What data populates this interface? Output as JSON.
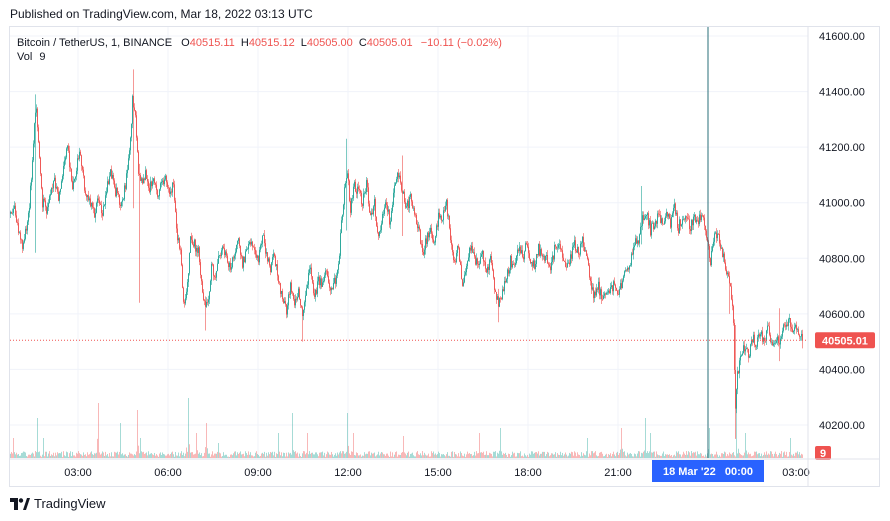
{
  "header": {
    "published": "Published on TradingView.com, Mar 18, 2022 03:13 UTC"
  },
  "legend": {
    "symbol": "Bitcoin / TetherUS, 1, BINANCE",
    "open_label": "O",
    "open": "40515.11",
    "high_label": "H",
    "high": "40515.12",
    "low_label": "L",
    "low": "40505.00",
    "close_label": "C",
    "close": "40505.01",
    "change": "−10.11 (−0.02%)",
    "vol_label": "Vol",
    "vol": "9"
  },
  "brand": {
    "name": "TradingView",
    "logo_icon": "tradingview-logo-icon"
  },
  "colors": {
    "up": "#26a69a",
    "down": "#ef5350",
    "crosshair": "#2a6f7a",
    "date_badge": "#2962ff"
  },
  "chart_data": {
    "type": "candlestick",
    "symbol": "BTC/USDT",
    "interval": "1",
    "exchange": "BINANCE",
    "ylim": [
      40120,
      41640
    ],
    "yticks": [
      40200,
      40400,
      40600,
      40800,
      41000,
      41200,
      41400,
      41600
    ],
    "ytick_labels": [
      "40200.00",
      "40400.00",
      "40600.00",
      "40800.00",
      "41000.00",
      "41200.00",
      "41400.00",
      "41600.00"
    ],
    "xtick_labels": [
      "03:00",
      "06:00",
      "09:00",
      "12:00",
      "15:00",
      "18:00",
      "21:00",
      "03:00"
    ],
    "last_price": 40505.01,
    "last_price_label": "40505.01",
    "last_volume_label": "9",
    "crosshair_date_label": "18 Mar '22   00:00",
    "grid": true,
    "path": [
      [
        0,
        40960
      ],
      [
        4,
        40990
      ],
      [
        8,
        40900
      ],
      [
        12,
        40850
      ],
      [
        18,
        40950
      ],
      [
        22,
        41150
      ],
      [
        24,
        41280
      ],
      [
        26,
        41350
      ],
      [
        29,
        41150
      ],
      [
        32,
        41000
      ],
      [
        36,
        40980
      ],
      [
        40,
        41050
      ],
      [
        44,
        41080
      ],
      [
        48,
        41000
      ],
      [
        53,
        41120
      ],
      [
        57,
        41200
      ],
      [
        62,
        41060
      ],
      [
        66,
        41130
      ],
      [
        70,
        41180
      ],
      [
        74,
        41060
      ],
      [
        79,
        41000
      ],
      [
        84,
        40960
      ],
      [
        88,
        41010
      ],
      [
        92,
        40960
      ],
      [
        96,
        41050
      ],
      [
        100,
        41120
      ],
      [
        104,
        41050
      ],
      [
        107,
        41030
      ],
      [
        111,
        40990
      ],
      [
        115,
        41060
      ],
      [
        118,
        41150
      ],
      [
        121,
        41270
      ],
      [
        122,
        41380
      ],
      [
        125,
        41300
      ],
      [
        128,
        41110
      ],
      [
        131,
        41070
      ],
      [
        135,
        41100
      ],
      [
        139,
        41050
      ],
      [
        143,
        41100
      ],
      [
        147,
        41030
      ],
      [
        151,
        41080
      ],
      [
        155,
        41090
      ],
      [
        159,
        41040
      ],
      [
        163,
        41060
      ],
      [
        166,
        40900
      ],
      [
        170,
        40830
      ],
      [
        173,
        40640
      ],
      [
        177,
        40700
      ],
      [
        180,
        40860
      ],
      [
        184,
        40850
      ],
      [
        188,
        40820
      ],
      [
        191,
        40700
      ],
      [
        195,
        40610
      ],
      [
        198,
        40650
      ],
      [
        201,
        40780
      ],
      [
        205,
        40720
      ],
      [
        208,
        40800
      ],
      [
        212,
        40850
      ],
      [
        216,
        40790
      ],
      [
        220,
        40760
      ],
      [
        224,
        40820
      ],
      [
        228,
        40870
      ],
      [
        232,
        40780
      ],
      [
        236,
        40830
      ],
      [
        240,
        40860
      ],
      [
        244,
        40820
      ],
      [
        248,
        40790
      ],
      [
        252,
        40880
      ],
      [
        256,
        40820
      ],
      [
        260,
        40760
      ],
      [
        264,
        40810
      ],
      [
        268,
        40720
      ],
      [
        272,
        40660
      ],
      [
        276,
        40610
      ],
      [
        280,
        40700
      ],
      [
        284,
        40630
      ],
      [
        288,
        40680
      ],
      [
        292,
        40600
      ],
      [
        296,
        40700
      ],
      [
        300,
        40780
      ],
      [
        304,
        40650
      ],
      [
        308,
        40730
      ],
      [
        312,
        40700
      ],
      [
        316,
        40760
      ],
      [
        320,
        40680
      ],
      [
        324,
        40710
      ],
      [
        328,
        40760
      ],
      [
        331,
        40940
      ],
      [
        334,
        41040
      ],
      [
        337,
        41100
      ],
      [
        340,
        40980
      ],
      [
        344,
        41060
      ],
      [
        348,
        41040
      ],
      [
        352,
        41000
      ],
      [
        356,
        41070
      ],
      [
        360,
        40950
      ],
      [
        364,
        41000
      ],
      [
        368,
        40870
      ],
      [
        372,
        40940
      ],
      [
        376,
        41000
      ],
      [
        380,
        40920
      ],
      [
        384,
        41080
      ],
      [
        388,
        41100
      ],
      [
        392,
        41040
      ],
      [
        396,
        40980
      ],
      [
        400,
        41020
      ],
      [
        404,
        40950
      ],
      [
        408,
        40920
      ],
      [
        412,
        40820
      ],
      [
        416,
        40870
      ],
      [
        420,
        40920
      ],
      [
        424,
        40840
      ],
      [
        428,
        40960
      ],
      [
        432,
        40950
      ],
      [
        436,
        41000
      ],
      [
        440,
        40880
      ],
      [
        444,
        40790
      ],
      [
        448,
        40840
      ],
      [
        452,
        40700
      ],
      [
        456,
        40780
      ],
      [
        460,
        40840
      ],
      [
        464,
        40800
      ],
      [
        468,
        40760
      ],
      [
        472,
        40820
      ],
      [
        476,
        40740
      ],
      [
        480,
        40790
      ],
      [
        484,
        40700
      ],
      [
        488,
        40640
      ],
      [
        492,
        40680
      ],
      [
        496,
        40730
      ],
      [
        500,
        40790
      ],
      [
        504,
        40760
      ],
      [
        508,
        40840
      ],
      [
        512,
        40800
      ],
      [
        516,
        40860
      ],
      [
        520,
        40800
      ],
      [
        524,
        40780
      ],
      [
        528,
        40840
      ],
      [
        532,
        40790
      ],
      [
        536,
        40810
      ],
      [
        540,
        40770
      ],
      [
        544,
        40830
      ],
      [
        548,
        40860
      ],
      [
        552,
        40800
      ],
      [
        556,
        40760
      ],
      [
        560,
        40800
      ],
      [
        564,
        40850
      ],
      [
        568,
        40820
      ],
      [
        572,
        40860
      ],
      [
        576,
        40800
      ],
      [
        580,
        40720
      ],
      [
        584,
        40660
      ],
      [
        588,
        40700
      ],
      [
        592,
        40640
      ],
      [
        596,
        40690
      ],
      [
        600,
        40680
      ],
      [
        604,
        40720
      ],
      [
        608,
        40680
      ],
      [
        612,
        40720
      ],
      [
        616,
        40750
      ],
      [
        620,
        40780
      ],
      [
        624,
        40850
      ],
      [
        628,
        40870
      ],
      [
        632,
        40950
      ],
      [
        636,
        40970
      ],
      [
        640,
        40900
      ],
      [
        644,
        40930
      ],
      [
        648,
        40950
      ],
      [
        652,
        40920
      ],
      [
        656,
        40960
      ],
      [
        660,
        40920
      ],
      [
        664,
        40980
      ],
      [
        668,
        40910
      ],
      [
        672,
        40950
      ],
      [
        676,
        40960
      ],
      [
        680,
        40910
      ],
      [
        684,
        40950
      ],
      [
        688,
        40940
      ],
      [
        692,
        40960
      ],
      [
        694,
        40920
      ],
      [
        697,
        40880
      ],
      [
        700,
        40780
      ],
      [
        704,
        40900
      ],
      [
        708,
        40880
      ],
      [
        712,
        40820
      ],
      [
        716,
        40750
      ],
      [
        720,
        40700
      ],
      [
        723,
        40580
      ],
      [
        725,
        40240
      ],
      [
        727,
        40390
      ],
      [
        730,
        40430
      ],
      [
        734,
        40480
      ],
      [
        738,
        40450
      ],
      [
        742,
        40510
      ],
      [
        746,
        40490
      ],
      [
        750,
        40530
      ],
      [
        754,
        40500
      ],
      [
        758,
        40560
      ],
      [
        762,
        40470
      ],
      [
        766,
        40520
      ],
      [
        770,
        40500
      ],
      [
        774,
        40560
      ],
      [
        778,
        40580
      ],
      [
        782,
        40530
      ],
      [
        786,
        40560
      ],
      [
        790,
        40520
      ],
      [
        792,
        40505
      ]
    ],
    "spikes": [
      [
        25,
        41390,
        40820
      ],
      [
        123,
        41480,
        40980
      ],
      [
        129,
        41140,
        40640
      ],
      [
        195,
        40650,
        40540
      ],
      [
        292,
        40600,
        40500
      ],
      [
        336,
        41230,
        40900
      ],
      [
        392,
        41170,
        40880
      ],
      [
        488,
        40690,
        40570
      ],
      [
        631,
        41060,
        40850
      ],
      [
        719,
        40720,
        40600
      ],
      [
        725,
        40560,
        40150
      ],
      [
        769,
        40620,
        40430
      ]
    ],
    "volume_peaks": [
      [
        3,
        20
      ],
      [
        27,
        40
      ],
      [
        33,
        20
      ],
      [
        88,
        55
      ],
      [
        110,
        35
      ],
      [
        127,
        48
      ],
      [
        130,
        20
      ],
      [
        178,
        60
      ],
      [
        186,
        25
      ],
      [
        196,
        35
      ],
      [
        208,
        15
      ],
      [
        268,
        25
      ],
      [
        282,
        45
      ],
      [
        297,
        25
      ],
      [
        337,
        45
      ],
      [
        343,
        25
      ],
      [
        393,
        22
      ],
      [
        469,
        25
      ],
      [
        490,
        30
      ],
      [
        577,
        20
      ],
      [
        611,
        30
      ],
      [
        635,
        40
      ],
      [
        640,
        25
      ],
      [
        699,
        30
      ],
      [
        726,
        65
      ],
      [
        735,
        25
      ],
      [
        780,
        20
      ]
    ]
  }
}
